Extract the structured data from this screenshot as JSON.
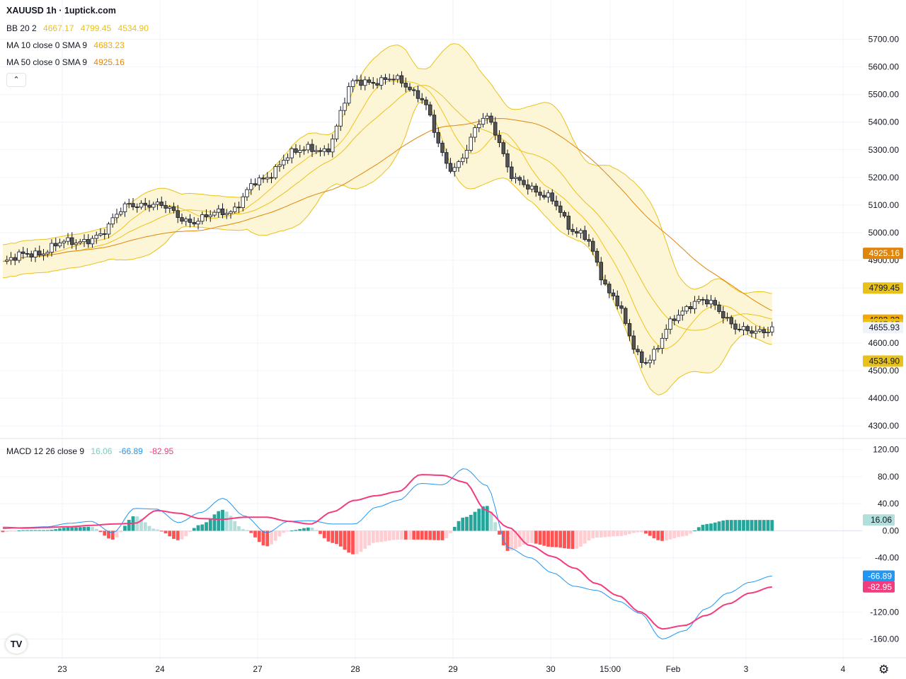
{
  "header": {
    "title": "XAUUSD 1h · 1uptick.com",
    "bb_label": "BB 20 2",
    "bb_values": [
      "4667.17",
      "4799.45",
      "4534.90"
    ],
    "ma10_label": "MA 10 close 0 SMA 9",
    "ma10_value": "4683.23",
    "ma50_label": "MA 50 close 0 SMA 9",
    "ma50_value": "4925.16",
    "macd_label": "MACD 12 26 close 9",
    "macd_values": [
      "16.06",
      "-66.89",
      "-82.95"
    ],
    "collapse_icon": "chevron-up"
  },
  "colors": {
    "up": "#ffffff",
    "down": "#555555",
    "candle_outline": "#131722",
    "bb": "#e8c21a",
    "bb_fill": "#fdf6d6",
    "ma10": "#f4c11c",
    "ma50": "#e0850c",
    "macd": "#2196f3",
    "signal": "#f23c80",
    "hist_up_strong": "#26a69a",
    "hist_up_weak": "#b2dfdb",
    "hist_down_strong": "#ff5252",
    "hist_down_weak": "#ffcdd2"
  },
  "chart_data": {
    "type": "candlestick",
    "price_axis": {
      "ticks": [
        "5700.00",
        "5600.00",
        "5500.00",
        "5400.00",
        "5300.00",
        "5200.00",
        "5100.00",
        "5000.00",
        "4900.00",
        "4600.00",
        "4500.00",
        "4400.00",
        "4300.00"
      ],
      "range": [
        4280,
        5740
      ]
    },
    "time_axis": {
      "labels": [
        "23",
        "24",
        "27",
        "28",
        "29",
        "30",
        "15:00",
        "Feb",
        "3",
        "4"
      ]
    },
    "price_labels": [
      {
        "text": "4925.16",
        "value": 4925.16,
        "color": "#e0850c",
        "text_color": "#ffffff"
      },
      {
        "text": "4799.45",
        "value": 4799.45,
        "color": "#e8c21a",
        "text_color": "#131722"
      },
      {
        "text": "4683.23",
        "value": 4683.23,
        "color": "#f4a900",
        "text_color": "#131722"
      },
      {
        "text": "4667.17",
        "value": 4667.17,
        "color": "#e8c21a",
        "text_color": "#131722"
      },
      {
        "text": "4655.93",
        "value": 4655.93,
        "color": "#f0f3fa",
        "text_color": "#131722"
      },
      {
        "text": "4534.90",
        "value": 4534.9,
        "color": "#e8c21a",
        "text_color": "#131722"
      }
    ],
    "price_anchors": [
      {
        "day": "22 Jan late",
        "price": 4890
      },
      {
        "day": "23 Jan",
        "price": 4930
      },
      {
        "day": "23 Jan late",
        "price": 4960
      },
      {
        "day": "24 Jan",
        "price": 4990
      },
      {
        "day": "24 Jan late",
        "price": 5110
      },
      {
        "day": "27 Jan",
        "price": 5090
      },
      {
        "day": "27 Jan mid",
        "price": 5040
      },
      {
        "day": "28 Jan",
        "price": 5080
      },
      {
        "day": "28 Jan late",
        "price": 5180
      },
      {
        "day": "28/29",
        "price": 5290
      },
      {
        "day": "29 Jan",
        "price": 5300
      },
      {
        "day": "29 Jan mid",
        "price": 5540
      },
      {
        "day": "29 Jan late",
        "price": 5560
      },
      {
        "day": "29/30",
        "price": 5500
      },
      {
        "day": "30 Jan",
        "price": 5220
      },
      {
        "day": "30 Jan mid",
        "price": 5420
      },
      {
        "day": "30 Jan late",
        "price": 5200
      },
      {
        "day": "31 Jan",
        "price": 5120
      },
      {
        "day": "31 Jan mid",
        "price": 5000
      },
      {
        "day": "Feb",
        "price": 4780
      },
      {
        "day": "1 Feb mid",
        "price": 4520
      },
      {
        "day": "2 Feb",
        "price": 4700
      },
      {
        "day": "2 Feb mid",
        "price": 4760
      },
      {
        "day": "3 Feb",
        "price": 4640
      },
      {
        "day": "3 Feb last",
        "price": 4656
      }
    ],
    "overlays": [
      {
        "name": "BB upper",
        "last": 4799.45
      },
      {
        "name": "BB basis",
        "last": 4667.17
      },
      {
        "name": "BB lower",
        "last": 4534.9
      },
      {
        "name": "MA 10",
        "last": 4683.23
      },
      {
        "name": "MA 50",
        "last": 4925.16
      }
    ],
    "macd": {
      "ticks": [
        "120.00",
        "80.00",
        "40.00",
        "0.00",
        "-40.00",
        "-120.00",
        "-160.00"
      ],
      "range": [
        -172,
        128
      ],
      "labels": [
        {
          "text": "16.06",
          "value": 16.06,
          "color": "#b2dfdb",
          "text_color": "#131722"
        },
        {
          "text": "-66.89",
          "value": -66.89,
          "color": "#2196f3",
          "text_color": "#ffffff"
        },
        {
          "text": "-82.95",
          "value": -82.95,
          "color": "#f23c80",
          "text_color": "#ffffff"
        }
      ],
      "macd_anchors": [
        3,
        5,
        6,
        11,
        14,
        -3,
        33,
        32,
        12,
        27,
        48,
        22,
        -3,
        14,
        15,
        10,
        10,
        35,
        45,
        70,
        68,
        92,
        67,
        -25,
        -40,
        -62,
        -82,
        -88,
        -104,
        -122,
        -160,
        -148,
        -115,
        -92,
        -76,
        -67
      ],
      "signal_anchors": [
        5,
        4,
        5,
        6,
        8,
        10,
        11,
        30,
        26,
        18,
        17,
        20,
        20,
        14,
        10,
        28,
        45,
        52,
        58,
        83,
        82,
        72,
        30,
        5,
        -22,
        -38,
        -55,
        -78,
        -96,
        -120,
        -145,
        -140,
        -125,
        -108,
        -92,
        -83
      ]
    }
  }
}
